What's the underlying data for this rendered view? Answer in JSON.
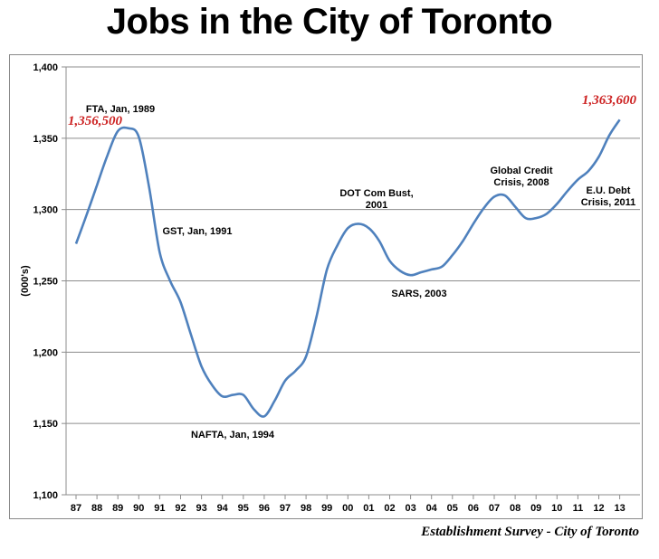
{
  "title": "Jobs in the City of Toronto",
  "source": "Establishment Survey - City of Toronto",
  "chart_data": {
    "type": "line",
    "title": "Jobs in the City of Toronto",
    "xlabel": "",
    "ylabel": "(000's)",
    "ylim": [
      1100,
      1400
    ],
    "yticks": [
      1100,
      1150,
      1200,
      1250,
      1300,
      1350,
      1400
    ],
    "ytick_labels": [
      "1,100",
      "1,150",
      "1,200",
      "1,250",
      "1,300",
      "1,350",
      "1,400"
    ],
    "categories": [
      "87",
      "88",
      "89",
      "90",
      "91",
      "92",
      "93",
      "94",
      "95",
      "96",
      "97",
      "98",
      "99",
      "00",
      "01",
      "02",
      "03",
      "04",
      "05",
      "06",
      "07",
      "08",
      "09",
      "10",
      "11",
      "12",
      "13"
    ],
    "grid": "horizontal",
    "line_color": "#4F81BD",
    "series": [
      {
        "x": [
          0,
          0.5,
          1,
          1.5,
          2,
          2.5,
          3,
          3.5,
          4,
          4.5,
          5,
          5.5,
          6,
          6.5,
          7,
          7.5,
          8,
          8.5,
          9,
          9.5,
          10,
          10.5,
          11,
          11.5,
          12,
          12.5,
          13,
          13.5,
          14,
          14.5,
          15,
          15.5,
          16,
          16.5,
          17,
          17.5,
          18,
          18.5,
          19,
          19.5,
          20,
          20.5,
          21,
          21.5,
          22,
          22.5,
          23,
          23.5,
          24,
          24.5,
          25,
          25.5,
          26
        ],
        "values": [
          1276,
          1296,
          1317,
          1338,
          1355,
          1357,
          1351,
          1315,
          1270,
          1250,
          1235,
          1212,
          1190,
          1177,
          1169,
          1170,
          1170,
          1160,
          1155,
          1166,
          1180,
          1187,
          1197,
          1225,
          1258,
          1275,
          1287,
          1290,
          1287,
          1278,
          1264,
          1257,
          1254,
          1256,
          1258,
          1260,
          1268,
          1278,
          1290,
          1301,
          1309,
          1310,
          1302,
          1294,
          1294,
          1297,
          1304,
          1313,
          1321,
          1327,
          1337,
          1352,
          1363
        ]
      }
    ],
    "annotations": [
      {
        "text": "FTA, Jan, 1989",
        "x": "89"
      },
      {
        "text": "GST, Jan, 1991",
        "x": "91"
      },
      {
        "text": "NAFTA, Jan, 1994",
        "x": "95"
      },
      {
        "text": "DOT Com Bust,",
        "text2": "2001",
        "x": "00"
      },
      {
        "text": "SARS, 2003",
        "x": "03"
      },
      {
        "text": "Global Credit",
        "text2": "Crisis, 2008",
        "x": "08"
      },
      {
        "text": "E.U. Debt",
        "text2": "Crisis, 2011",
        "x": "12"
      }
    ],
    "data_labels": [
      {
        "text": "1,356,500",
        "x": "89",
        "color": "#CC2020"
      },
      {
        "text": "1,363,600",
        "x": "13",
        "color": "#CC2020"
      }
    ]
  }
}
